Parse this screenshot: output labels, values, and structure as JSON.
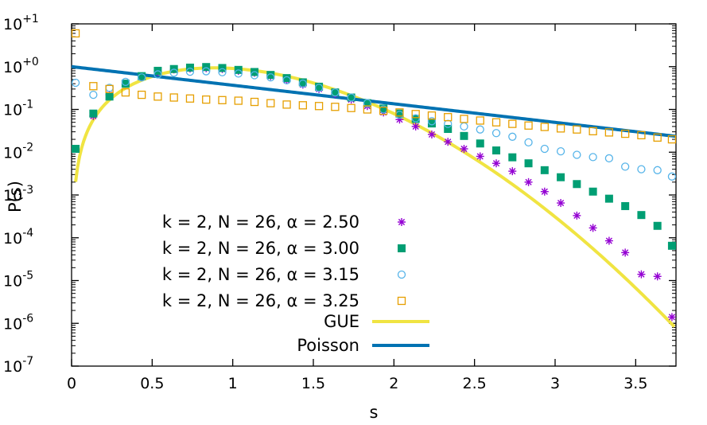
{
  "chart_data": {
    "type": "scatter",
    "title": "",
    "xlabel": "s",
    "ylabel": "P(s)",
    "xlim": [
      0,
      3.75
    ],
    "ylim_log10": [
      -7,
      1
    ],
    "yscale": "log",
    "grid": false,
    "legend_position": "bottom-left",
    "x_ticks": [
      {
        "value": 0,
        "label": "0"
      },
      {
        "value": 0.5,
        "label": "0.5"
      },
      {
        "value": 1,
        "label": "1"
      },
      {
        "value": 1.5,
        "label": "1.5"
      },
      {
        "value": 2,
        "label": "2"
      },
      {
        "value": 2.5,
        "label": "2.5"
      },
      {
        "value": 3,
        "label": "3"
      },
      {
        "value": 3.5,
        "label": "3.5"
      }
    ],
    "y_ticks": [
      {
        "exp": 1,
        "base": "10",
        "sup": "+1"
      },
      {
        "exp": 0,
        "base": "10",
        "sup": "+0"
      },
      {
        "exp": -1,
        "base": "10",
        "sup": "-1"
      },
      {
        "exp": -2,
        "base": "10",
        "sup": "-2"
      },
      {
        "exp": -3,
        "base": "10",
        "sup": "-3"
      },
      {
        "exp": -4,
        "base": "10",
        "sup": "-4"
      },
      {
        "exp": -5,
        "base": "10",
        "sup": "-5"
      },
      {
        "exp": -6,
        "base": "10",
        "sup": "-6"
      },
      {
        "exp": -7,
        "base": "10",
        "sup": "-7"
      }
    ],
    "series": [
      {
        "name": "k = 2, N = 26, α = 2.50",
        "marker": "asterisk",
        "color": "#9400d3",
        "x": [
          0.025,
          0.135,
          0.235,
          0.335,
          0.435,
          0.535,
          0.635,
          0.735,
          0.835,
          0.935,
          1.035,
          1.135,
          1.235,
          1.335,
          1.435,
          1.535,
          1.635,
          1.735,
          1.835,
          1.935,
          2.035,
          2.135,
          2.235,
          2.335,
          2.435,
          2.535,
          2.635,
          2.735,
          2.835,
          2.935,
          3.035,
          3.135,
          3.235,
          3.335,
          3.435,
          3.535,
          3.635,
          3.725
        ],
        "y": [
          0.012,
          0.07,
          0.22,
          0.4,
          0.58,
          0.76,
          0.86,
          0.9,
          0.92,
          0.88,
          0.8,
          0.72,
          0.6,
          0.48,
          0.38,
          0.3,
          0.23,
          0.17,
          0.12,
          0.085,
          0.058,
          0.04,
          0.026,
          0.0175,
          0.012,
          0.008,
          0.0055,
          0.0036,
          0.002,
          0.0012,
          0.00065,
          0.00033,
          0.00017,
          8.5e-05,
          4.5e-05,
          1.4e-05,
          1.25e-05,
          1.4e-06
        ]
      },
      {
        "name": "k = 2, N = 26, α = 3.00",
        "marker": "filled-square",
        "color": "#009e73",
        "x": [
          0.025,
          0.135,
          0.235,
          0.335,
          0.435,
          0.535,
          0.635,
          0.735,
          0.835,
          0.935,
          1.035,
          1.135,
          1.235,
          1.335,
          1.435,
          1.535,
          1.635,
          1.735,
          1.835,
          1.935,
          2.035,
          2.135,
          2.235,
          2.335,
          2.435,
          2.535,
          2.635,
          2.735,
          2.835,
          2.935,
          3.035,
          3.135,
          3.235,
          3.335,
          3.435,
          3.535,
          3.635,
          3.725
        ],
        "y": [
          0.012,
          0.08,
          0.2,
          0.4,
          0.6,
          0.8,
          0.88,
          0.95,
          0.98,
          0.93,
          0.84,
          0.75,
          0.64,
          0.54,
          0.43,
          0.34,
          0.25,
          0.19,
          0.14,
          0.105,
          0.08,
          0.06,
          0.047,
          0.035,
          0.024,
          0.016,
          0.011,
          0.0076,
          0.0055,
          0.0038,
          0.0026,
          0.0018,
          0.0012,
          0.00082,
          0.00055,
          0.00034,
          0.00019,
          6.5e-05
        ]
      },
      {
        "name": "k = 2, N = 26, α = 3.15",
        "marker": "open-circle",
        "color": "#56b4e9",
        "x": [
          0.025,
          0.135,
          0.235,
          0.335,
          0.435,
          0.535,
          0.635,
          0.735,
          0.835,
          0.935,
          1.035,
          1.135,
          1.235,
          1.335,
          1.435,
          1.535,
          1.635,
          1.735,
          1.835,
          1.935,
          2.035,
          2.135,
          2.235,
          2.335,
          2.435,
          2.535,
          2.635,
          2.735,
          2.835,
          2.935,
          3.035,
          3.135,
          3.235,
          3.335,
          3.435,
          3.535,
          3.635,
          3.725
        ],
        "y": [
          0.42,
          0.22,
          0.32,
          0.44,
          0.56,
          0.66,
          0.72,
          0.76,
          0.78,
          0.74,
          0.69,
          0.63,
          0.56,
          0.48,
          0.4,
          0.32,
          0.25,
          0.19,
          0.14,
          0.1,
          0.075,
          0.062,
          0.053,
          0.046,
          0.04,
          0.034,
          0.028,
          0.023,
          0.017,
          0.012,
          0.0105,
          0.0087,
          0.0077,
          0.0072,
          0.0046,
          0.004,
          0.0038,
          0.0027
        ]
      },
      {
        "name": "k = 2, N = 26, α = 3.25",
        "marker": "open-square",
        "color": "#e69f00",
        "x": [
          0.025,
          0.135,
          0.235,
          0.335,
          0.435,
          0.535,
          0.635,
          0.735,
          0.835,
          0.935,
          1.035,
          1.135,
          1.235,
          1.335,
          1.435,
          1.535,
          1.635,
          1.735,
          1.835,
          1.935,
          2.035,
          2.135,
          2.235,
          2.335,
          2.435,
          2.535,
          2.635,
          2.735,
          2.835,
          2.935,
          3.035,
          3.135,
          3.235,
          3.335,
          3.435,
          3.535,
          3.635,
          3.725
        ],
        "y": [
          6.0,
          0.35,
          0.3,
          0.25,
          0.22,
          0.2,
          0.19,
          0.18,
          0.17,
          0.165,
          0.16,
          0.15,
          0.14,
          0.13,
          0.125,
          0.12,
          0.115,
          0.108,
          0.1,
          0.093,
          0.085,
          0.078,
          0.072,
          0.066,
          0.06,
          0.055,
          0.05,
          0.046,
          0.042,
          0.039,
          0.036,
          0.034,
          0.031,
          0.029,
          0.027,
          0.025,
          0.022,
          0.02
        ]
      }
    ],
    "curves": [
      {
        "name": "GUE",
        "color": "#f0e442",
        "formula": "(32/pi^2) s^2 exp(-4 s^2 / pi)",
        "x_range": [
          0.025,
          3.74
        ]
      },
      {
        "name": "Poisson",
        "color": "#0072b2",
        "formula": "exp(-s)",
        "x_range": [
          0,
          3.75
        ]
      }
    ]
  }
}
